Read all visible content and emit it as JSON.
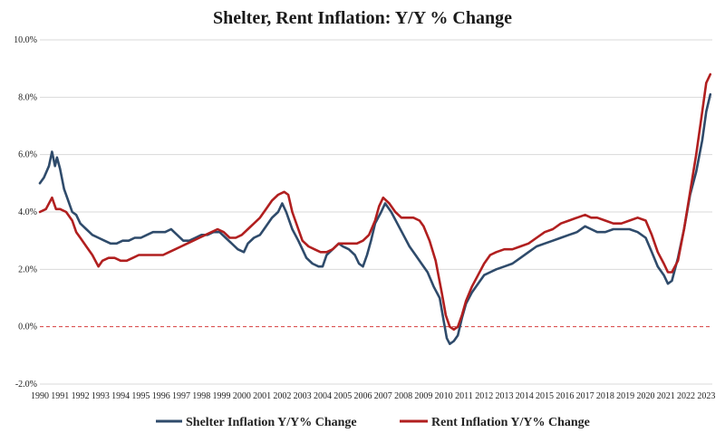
{
  "chart_data": {
    "type": "line",
    "title": "Shelter, Rent Inflation: Y/Y % Change",
    "xlabel": "",
    "ylabel": "",
    "xlim": [
      1990,
      2023.3
    ],
    "ylim": [
      -2,
      10
    ],
    "y_ticks": [
      -2,
      0,
      2,
      4,
      6,
      8,
      10
    ],
    "y_tick_labels": [
      "-2.0%",
      "0.0%",
      "2.0%",
      "4.0%",
      "6.0%",
      "8.0%",
      "10.0%"
    ],
    "x_ticks": [
      1990,
      1991,
      1992,
      1993,
      1994,
      1995,
      1996,
      1997,
      1998,
      1999,
      2000,
      2001,
      2002,
      2003,
      2004,
      2005,
      2006,
      2007,
      2008,
      2009,
      2010,
      2011,
      2012,
      2013,
      2014,
      2015,
      2016,
      2017,
      2018,
      2019,
      2020,
      2021,
      2022,
      2023
    ],
    "x_tick_labels": [
      "1990",
      "1991",
      "1992",
      "1993",
      "1994",
      "1995",
      "1996",
      "1997",
      "1998",
      "1999",
      "2000",
      "2001",
      "2002",
      "2003",
      "2004",
      "2005",
      "2006",
      "2007",
      "2008",
      "2009",
      "2010",
      "2011",
      "2012",
      "2013",
      "2014",
      "2015",
      "2016",
      "2017",
      "2018",
      "2019",
      "2020",
      "2021",
      "2022",
      "2023"
    ],
    "grid": "horizontal",
    "reference_line": {
      "y": 0,
      "style": "dashed",
      "color": "#d63c3c"
    },
    "legend_position": "bottom",
    "series": [
      {
        "name": "Shelter Inflation Y/Y% Change",
        "color": "#2f4b6b",
        "points": [
          [
            1990.0,
            5.0
          ],
          [
            1990.2,
            5.2
          ],
          [
            1990.45,
            5.6
          ],
          [
            1990.6,
            6.1
          ],
          [
            1990.75,
            5.6
          ],
          [
            1990.85,
            5.9
          ],
          [
            1991.0,
            5.5
          ],
          [
            1991.2,
            4.8
          ],
          [
            1991.4,
            4.4
          ],
          [
            1991.6,
            4.0
          ],
          [
            1991.8,
            3.9
          ],
          [
            1992.0,
            3.6
          ],
          [
            1992.3,
            3.4
          ],
          [
            1992.6,
            3.2
          ],
          [
            1992.9,
            3.1
          ],
          [
            1993.2,
            3.0
          ],
          [
            1993.5,
            2.9
          ],
          [
            1993.8,
            2.9
          ],
          [
            1994.1,
            3.0
          ],
          [
            1994.4,
            3.0
          ],
          [
            1994.7,
            3.1
          ],
          [
            1995.0,
            3.1
          ],
          [
            1995.3,
            3.2
          ],
          [
            1995.6,
            3.3
          ],
          [
            1995.9,
            3.3
          ],
          [
            1996.2,
            3.3
          ],
          [
            1996.5,
            3.4
          ],
          [
            1996.8,
            3.2
          ],
          [
            1997.1,
            3.0
          ],
          [
            1997.4,
            3.0
          ],
          [
            1997.7,
            3.1
          ],
          [
            1998.0,
            3.2
          ],
          [
            1998.3,
            3.2
          ],
          [
            1998.6,
            3.3
          ],
          [
            1998.9,
            3.3
          ],
          [
            1999.2,
            3.1
          ],
          [
            1999.5,
            2.9
          ],
          [
            1999.8,
            2.7
          ],
          [
            2000.1,
            2.6
          ],
          [
            2000.3,
            2.9
          ],
          [
            2000.6,
            3.1
          ],
          [
            2000.9,
            3.2
          ],
          [
            2001.2,
            3.5
          ],
          [
            2001.5,
            3.8
          ],
          [
            2001.8,
            4.0
          ],
          [
            2002.0,
            4.3
          ],
          [
            2002.2,
            4.0
          ],
          [
            2002.5,
            3.4
          ],
          [
            2002.8,
            3.0
          ],
          [
            2003.0,
            2.7
          ],
          [
            2003.2,
            2.4
          ],
          [
            2003.5,
            2.2
          ],
          [
            2003.8,
            2.1
          ],
          [
            2004.0,
            2.1
          ],
          [
            2004.2,
            2.5
          ],
          [
            2004.5,
            2.7
          ],
          [
            2004.8,
            2.9
          ],
          [
            2005.0,
            2.8
          ],
          [
            2005.3,
            2.7
          ],
          [
            2005.6,
            2.5
          ],
          [
            2005.8,
            2.2
          ],
          [
            2006.0,
            2.1
          ],
          [
            2006.2,
            2.5
          ],
          [
            2006.4,
            3.0
          ],
          [
            2006.6,
            3.6
          ],
          [
            2006.9,
            4.0
          ],
          [
            2007.1,
            4.3
          ],
          [
            2007.4,
            4.0
          ],
          [
            2007.7,
            3.6
          ],
          [
            2008.0,
            3.2
          ],
          [
            2008.3,
            2.8
          ],
          [
            2008.6,
            2.5
          ],
          [
            2008.9,
            2.2
          ],
          [
            2009.2,
            1.9
          ],
          [
            2009.5,
            1.4
          ],
          [
            2009.8,
            1.0
          ],
          [
            2010.0,
            0.2
          ],
          [
            2010.15,
            -0.4
          ],
          [
            2010.3,
            -0.6
          ],
          [
            2010.5,
            -0.5
          ],
          [
            2010.7,
            -0.3
          ],
          [
            2010.9,
            0.3
          ],
          [
            2011.1,
            0.8
          ],
          [
            2011.4,
            1.2
          ],
          [
            2011.7,
            1.5
          ],
          [
            2012.0,
            1.8
          ],
          [
            2012.3,
            1.9
          ],
          [
            2012.6,
            2.0
          ],
          [
            2013.0,
            2.1
          ],
          [
            2013.4,
            2.2
          ],
          [
            2013.8,
            2.4
          ],
          [
            2014.2,
            2.6
          ],
          [
            2014.6,
            2.8
          ],
          [
            2015.0,
            2.9
          ],
          [
            2015.4,
            3.0
          ],
          [
            2015.8,
            3.1
          ],
          [
            2016.2,
            3.2
          ],
          [
            2016.6,
            3.3
          ],
          [
            2017.0,
            3.5
          ],
          [
            2017.3,
            3.4
          ],
          [
            2017.6,
            3.3
          ],
          [
            2018.0,
            3.3
          ],
          [
            2018.4,
            3.4
          ],
          [
            2018.8,
            3.4
          ],
          [
            2019.2,
            3.4
          ],
          [
            2019.6,
            3.3
          ],
          [
            2020.0,
            3.1
          ],
          [
            2020.3,
            2.6
          ],
          [
            2020.6,
            2.1
          ],
          [
            2020.9,
            1.8
          ],
          [
            2021.1,
            1.5
          ],
          [
            2021.3,
            1.6
          ],
          [
            2021.6,
            2.4
          ],
          [
            2021.9,
            3.4
          ],
          [
            2022.2,
            4.6
          ],
          [
            2022.5,
            5.4
          ],
          [
            2022.8,
            6.5
          ],
          [
            2023.0,
            7.5
          ],
          [
            2023.2,
            8.1
          ]
        ]
      },
      {
        "name": "Rent Inflation Y/Y% Change",
        "color": "#b11f1f",
        "points": [
          [
            1990.0,
            4.0
          ],
          [
            1990.3,
            4.1
          ],
          [
            1990.6,
            4.5
          ],
          [
            1990.8,
            4.1
          ],
          [
            1991.0,
            4.1
          ],
          [
            1991.3,
            4.0
          ],
          [
            1991.6,
            3.7
          ],
          [
            1991.8,
            3.3
          ],
          [
            1992.0,
            3.1
          ],
          [
            1992.3,
            2.8
          ],
          [
            1992.6,
            2.5
          ],
          [
            1992.9,
            2.1
          ],
          [
            1993.1,
            2.3
          ],
          [
            1993.4,
            2.4
          ],
          [
            1993.7,
            2.4
          ],
          [
            1994.0,
            2.3
          ],
          [
            1994.3,
            2.3
          ],
          [
            1994.6,
            2.4
          ],
          [
            1994.9,
            2.5
          ],
          [
            1995.2,
            2.5
          ],
          [
            1995.5,
            2.5
          ],
          [
            1995.8,
            2.5
          ],
          [
            1996.1,
            2.5
          ],
          [
            1996.4,
            2.6
          ],
          [
            1996.7,
            2.7
          ],
          [
            1997.0,
            2.8
          ],
          [
            1997.3,
            2.9
          ],
          [
            1997.6,
            3.0
          ],
          [
            1997.9,
            3.1
          ],
          [
            1998.2,
            3.2
          ],
          [
            1998.5,
            3.3
          ],
          [
            1998.8,
            3.4
          ],
          [
            1999.1,
            3.3
          ],
          [
            1999.4,
            3.1
          ],
          [
            1999.7,
            3.1
          ],
          [
            2000.0,
            3.2
          ],
          [
            2000.3,
            3.4
          ],
          [
            2000.6,
            3.6
          ],
          [
            2000.9,
            3.8
          ],
          [
            2001.2,
            4.1
          ],
          [
            2001.5,
            4.4
          ],
          [
            2001.8,
            4.6
          ],
          [
            2002.1,
            4.7
          ],
          [
            2002.3,
            4.6
          ],
          [
            2002.5,
            4.0
          ],
          [
            2002.8,
            3.4
          ],
          [
            2003.0,
            3.0
          ],
          [
            2003.3,
            2.8
          ],
          [
            2003.6,
            2.7
          ],
          [
            2003.9,
            2.6
          ],
          [
            2004.2,
            2.6
          ],
          [
            2004.5,
            2.7
          ],
          [
            2004.8,
            2.9
          ],
          [
            2005.1,
            2.9
          ],
          [
            2005.4,
            2.9
          ],
          [
            2005.7,
            2.9
          ],
          [
            2006.0,
            3.0
          ],
          [
            2006.3,
            3.2
          ],
          [
            2006.6,
            3.7
          ],
          [
            2006.8,
            4.2
          ],
          [
            2007.0,
            4.5
          ],
          [
            2007.3,
            4.3
          ],
          [
            2007.6,
            4.0
          ],
          [
            2007.9,
            3.8
          ],
          [
            2008.2,
            3.8
          ],
          [
            2008.5,
            3.8
          ],
          [
            2008.8,
            3.7
          ],
          [
            2009.0,
            3.5
          ],
          [
            2009.3,
            3.0
          ],
          [
            2009.6,
            2.3
          ],
          [
            2009.9,
            1.2
          ],
          [
            2010.1,
            0.4
          ],
          [
            2010.3,
            0.0
          ],
          [
            2010.5,
            -0.1
          ],
          [
            2010.7,
            0.0
          ],
          [
            2010.9,
            0.4
          ],
          [
            2011.1,
            0.9
          ],
          [
            2011.4,
            1.4
          ],
          [
            2011.7,
            1.8
          ],
          [
            2012.0,
            2.2
          ],
          [
            2012.3,
            2.5
          ],
          [
            2012.6,
            2.6
          ],
          [
            2013.0,
            2.7
          ],
          [
            2013.4,
            2.7
          ],
          [
            2013.8,
            2.8
          ],
          [
            2014.2,
            2.9
          ],
          [
            2014.6,
            3.1
          ],
          [
            2015.0,
            3.3
          ],
          [
            2015.4,
            3.4
          ],
          [
            2015.8,
            3.6
          ],
          [
            2016.2,
            3.7
          ],
          [
            2016.6,
            3.8
          ],
          [
            2017.0,
            3.9
          ],
          [
            2017.3,
            3.8
          ],
          [
            2017.6,
            3.8
          ],
          [
            2018.0,
            3.7
          ],
          [
            2018.4,
            3.6
          ],
          [
            2018.8,
            3.6
          ],
          [
            2019.2,
            3.7
          ],
          [
            2019.6,
            3.8
          ],
          [
            2020.0,
            3.7
          ],
          [
            2020.3,
            3.2
          ],
          [
            2020.6,
            2.6
          ],
          [
            2020.9,
            2.2
          ],
          [
            2021.1,
            1.9
          ],
          [
            2021.3,
            1.9
          ],
          [
            2021.6,
            2.3
          ],
          [
            2021.9,
            3.4
          ],
          [
            2022.2,
            4.7
          ],
          [
            2022.5,
            6.0
          ],
          [
            2022.8,
            7.5
          ],
          [
            2023.0,
            8.5
          ],
          [
            2023.2,
            8.8
          ]
        ]
      }
    ]
  }
}
